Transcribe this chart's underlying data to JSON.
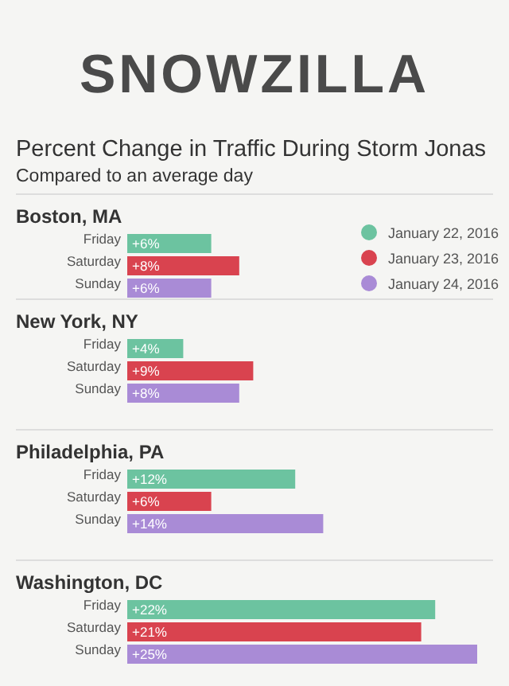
{
  "chart_data": [
    {
      "type": "other",
      "title": "SNOWZILLA",
      "subtitle": "Percent Change in Traffic During Storm Jonas",
      "annotations": [
        "Compared to an average day"
      ]
    },
    {
      "type": "bar",
      "orientation": "horizontal",
      "title": "Boston, MA",
      "categories": [
        "Friday",
        "Saturday",
        "Sunday"
      ],
      "tick_labels": "y",
      "legend": "right",
      "series": [
        {
          "name": "January 22, 2016",
          "color": "#6cc3a0",
          "values": [
            6,
            null,
            null
          ],
          "value_labels": [
            "+6%",
            null,
            null
          ]
        },
        {
          "name": "January 23, 2016",
          "color": "#d9434f",
          "values": [
            null,
            8,
            null
          ],
          "value_labels": [
            null,
            "+8%",
            null
          ]
        },
        {
          "name": "January 24, 2016",
          "color": "#a98bd6",
          "values": [
            null,
            null,
            6
          ],
          "value_labels": [
            null,
            null,
            "+6%"
          ]
        }
      ]
    },
    {
      "type": "bar",
      "orientation": "horizontal",
      "title": "New York, NY",
      "categories": [
        "Friday",
        "Saturday",
        "Sunday"
      ],
      "tick_labels": "y",
      "series": [
        {
          "color": "#6cc3a0",
          "values": [
            4,
            null,
            null
          ],
          "value_labels": [
            "+4%",
            null,
            null
          ]
        },
        {
          "color": "#d9434f",
          "values": [
            null,
            9,
            null
          ],
          "value_labels": [
            null,
            "+9%",
            null
          ]
        },
        {
          "color": "#a98bd6",
          "values": [
            null,
            null,
            8
          ],
          "value_labels": [
            null,
            null,
            "+8%"
          ]
        }
      ]
    },
    {
      "type": "bar",
      "orientation": "horizontal",
      "title": "Philadelphia, PA",
      "categories": [
        "Friday",
        "Saturday",
        "Sunday"
      ],
      "tick_labels": "y",
      "series": [
        {
          "color": "#6cc3a0",
          "values": [
            12,
            null,
            null
          ],
          "value_labels": [
            "+12%",
            null,
            null
          ]
        },
        {
          "color": "#d9434f",
          "values": [
            null,
            6,
            null
          ],
          "value_labels": [
            null,
            "+6%",
            null
          ]
        },
        {
          "color": "#a98bd6",
          "values": [
            null,
            null,
            14
          ],
          "value_labels": [
            null,
            null,
            "+14%"
          ]
        }
      ]
    },
    {
      "type": "bar",
      "orientation": "horizontal",
      "title": "Washington, DC",
      "categories": [
        "Friday",
        "Saturday",
        "Sunday"
      ],
      "tick_labels": "y",
      "series": [
        {
          "color": "#6cc3a0",
          "values": [
            22,
            null,
            null
          ],
          "value_labels": [
            "+22%",
            null,
            null
          ]
        },
        {
          "color": "#d9434f",
          "values": [
            null,
            21,
            null
          ],
          "value_labels": [
            null,
            "+21%",
            null
          ]
        },
        {
          "color": "#a98bd6",
          "values": [
            null,
            null,
            25
          ],
          "value_labels": [
            null,
            null,
            "+25%"
          ]
        }
      ]
    }
  ]
}
